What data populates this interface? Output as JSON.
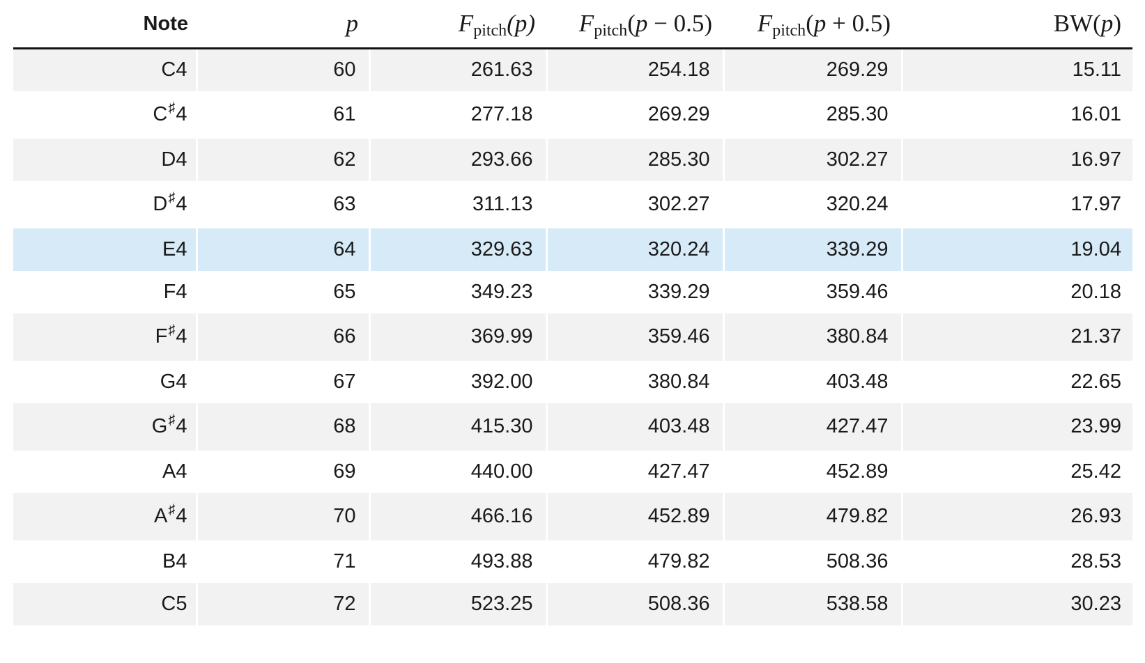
{
  "table": {
    "headers": {
      "note": "Note",
      "p": "p",
      "f_pitch_p": {
        "F": "F",
        "sub": "pitch",
        "arg": "(p)"
      },
      "f_pitch_minus": {
        "F": "F",
        "sub": "pitch",
        "arg": "(p − 0.5)"
      },
      "f_pitch_plus": {
        "F": "F",
        "sub": "pitch",
        "arg": "(p + 0.5)"
      },
      "bw": "BW(p)"
    },
    "rows": [
      {
        "letter": "C",
        "sharp": "",
        "octave": "4",
        "p": "60",
        "f": "261.63",
        "fm": "254.18",
        "fp": "269.29",
        "bw": "15.11"
      },
      {
        "letter": "C",
        "sharp": "♯",
        "octave": "4",
        "p": "61",
        "f": "277.18",
        "fm": "269.29",
        "fp": "285.30",
        "bw": "16.01"
      },
      {
        "letter": "D",
        "sharp": "",
        "octave": "4",
        "p": "62",
        "f": "293.66",
        "fm": "285.30",
        "fp": "302.27",
        "bw": "16.97"
      },
      {
        "letter": "D",
        "sharp": "♯",
        "octave": "4",
        "p": "63",
        "f": "311.13",
        "fm": "302.27",
        "fp": "320.24",
        "bw": "17.97"
      },
      {
        "letter": "E",
        "sharp": "",
        "octave": "4",
        "p": "64",
        "f": "329.63",
        "fm": "320.24",
        "fp": "339.29",
        "bw": "19.04"
      },
      {
        "letter": "F",
        "sharp": "",
        "octave": "4",
        "p": "65",
        "f": "349.23",
        "fm": "339.29",
        "fp": "359.46",
        "bw": "20.18"
      },
      {
        "letter": "F",
        "sharp": "♯",
        "octave": "4",
        "p": "66",
        "f": "369.99",
        "fm": "359.46",
        "fp": "380.84",
        "bw": "21.37"
      },
      {
        "letter": "G",
        "sharp": "",
        "octave": "4",
        "p": "67",
        "f": "392.00",
        "fm": "380.84",
        "fp": "403.48",
        "bw": "22.65"
      },
      {
        "letter": "G",
        "sharp": "♯",
        "octave": "4",
        "p": "68",
        "f": "415.30",
        "fm": "403.48",
        "fp": "427.47",
        "bw": "23.99"
      },
      {
        "letter": "A",
        "sharp": "",
        "octave": "4",
        "p": "69",
        "f": "440.00",
        "fm": "427.47",
        "fp": "452.89",
        "bw": "25.42"
      },
      {
        "letter": "A",
        "sharp": "♯",
        "octave": "4",
        "p": "70",
        "f": "466.16",
        "fm": "452.89",
        "fp": "479.82",
        "bw": "26.93"
      },
      {
        "letter": "B",
        "sharp": "",
        "octave": "4",
        "p": "71",
        "f": "493.88",
        "fm": "479.82",
        "fp": "508.36",
        "bw": "28.53"
      },
      {
        "letter": "C",
        "sharp": "",
        "octave": "5",
        "p": "72",
        "f": "523.25",
        "fm": "508.36",
        "fp": "538.58",
        "bw": "30.23"
      }
    ],
    "highlighted_row_index": 4
  },
  "colors": {
    "stripe": "#f2f2f2",
    "highlight": "#d6eaf8",
    "rule": "#111111",
    "text": "#1a1a1a"
  }
}
